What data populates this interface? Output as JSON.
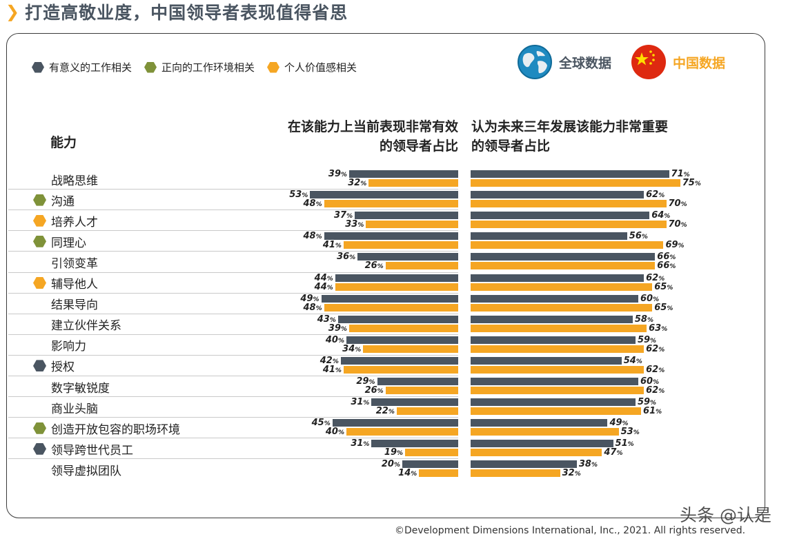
{
  "title": "打造高敬业度，中国领导者表现值得省思",
  "legend": [
    {
      "label": "有意义的工作相关",
      "color": "#4a5561"
    },
    {
      "label": "正向的工作环境相关",
      "color": "#7f9239"
    },
    {
      "label": "个人价值感相关",
      "color": "#f5a623"
    }
  ],
  "badges": {
    "global": "全球数据",
    "china": "中国数据"
  },
  "headers": {
    "ability": "能力",
    "left_line1": "在该能力上当前表现非常有效",
    "left_line2": "的领导者占比",
    "right_line1": "认为未来三年发展该能力非常重要",
    "right_line2": "的领导者占比"
  },
  "footer": "©Development Dimensions International, Inc., 2021. All rights reserved.",
  "watermark": "头条 @认是",
  "chart_data": {
    "type": "bar",
    "orientation": "horizontal-butterfly",
    "unit": "%",
    "categories": [
      "战略思维",
      "沟通",
      "培养人才",
      "同理心",
      "引领变革",
      "辅导他人",
      "结果导向",
      "建立伙伴关系",
      "影响力",
      "授权",
      "数字敏锐度",
      "商业头脑",
      "创造开放包容的职场环境",
      "领导跨世代员工",
      "领导虚拟团队"
    ],
    "category_markers": [
      "none",
      "olive",
      "orange",
      "olive",
      "none",
      "orange",
      "none",
      "none",
      "none",
      "dark",
      "none",
      "none",
      "olive",
      "dark",
      "none"
    ],
    "panels": [
      {
        "name": "在该能力上当前表现非常有效的领导者占比",
        "direction": "left",
        "series": [
          {
            "name": "全球数据",
            "color": "#4a5561",
            "values": [
              39,
              53,
              37,
              48,
              36,
              44,
              49,
              43,
              40,
              42,
              29,
              31,
              45,
              31,
              20
            ]
          },
          {
            "name": "中国数据",
            "color": "#f5a623",
            "values": [
              32,
              48,
              33,
              41,
              26,
              44,
              48,
              39,
              34,
              41,
              26,
              22,
              40,
              19,
              14
            ]
          }
        ]
      },
      {
        "name": "认为未来三年发展该能力非常重要的领导者占比",
        "direction": "right",
        "series": [
          {
            "name": "全球数据",
            "color": "#4a5561",
            "values": [
              71,
              62,
              64,
              56,
              66,
              62,
              60,
              58,
              59,
              54,
              60,
              59,
              49,
              51,
              38
            ]
          },
          {
            "name": "中国数据",
            "color": "#f5a623",
            "values": [
              75,
              70,
              70,
              69,
              66,
              65,
              65,
              63,
              62,
              62,
              62,
              61,
              53,
              47,
              32
            ]
          }
        ]
      }
    ]
  }
}
